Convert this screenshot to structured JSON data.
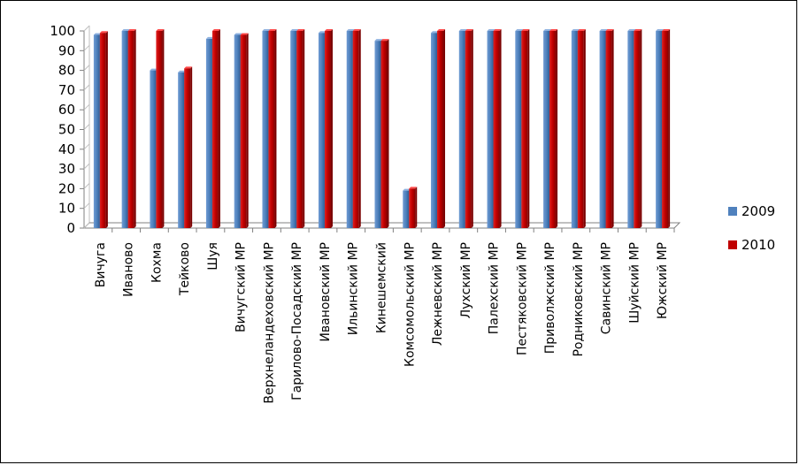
{
  "chart_data": {
    "type": "bar",
    "title": "",
    "xlabel": "",
    "ylabel": "",
    "ylim": [
      0,
      100
    ],
    "yticks": [
      0,
      10,
      20,
      30,
      40,
      50,
      60,
      70,
      80,
      90,
      100
    ],
    "grid": false,
    "legend_position": "right",
    "categories": [
      "Вичуга",
      "Иваново",
      "Кохма",
      "Тейково",
      "Шуя",
      "Вичугский МР",
      "Верхнеландеховский МР",
      "Гарилово-Посадский МР",
      "Ивановский МР",
      "Ильинский МР",
      "Кинешемский",
      "Комсомольский МР",
      "Лежневский МР",
      "Лухский МР",
      "Палехский МР",
      "Пестяковский МР",
      "Приволжский МР",
      "Родниковский МР",
      "Савинский МР",
      "Шуйский МР",
      "Южский МР"
    ],
    "series": [
      {
        "name": "2009",
        "color": "#4f81bd",
        "values": [
          98,
          100,
          80,
          79,
          96,
          98,
          100,
          100,
          99,
          100,
          95,
          19,
          99,
          100,
          100,
          100,
          100,
          100,
          100,
          100,
          100
        ]
      },
      {
        "name": "2010",
        "color": "#c00000",
        "values": [
          99,
          100,
          100,
          81,
          100,
          98,
          100,
          100,
          100,
          100,
          95,
          20,
          100,
          100,
          100,
          100,
          100,
          100,
          100,
          100,
          100
        ]
      }
    ]
  }
}
